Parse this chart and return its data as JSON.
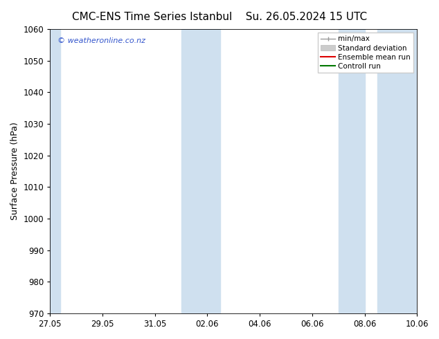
{
  "title_left": "CMC-ENS Time Series Istanbul",
  "title_right": "Su. 26.05.2024 15 UTC",
  "ylabel": "Surface Pressure (hPa)",
  "ylim": [
    970,
    1060
  ],
  "yticks": [
    970,
    980,
    990,
    1000,
    1010,
    1020,
    1030,
    1040,
    1050,
    1060
  ],
  "xtick_labels": [
    "27.05",
    "29.05",
    "31.05",
    "02.06",
    "04.06",
    "06.06",
    "08.06",
    "10.06"
  ],
  "xtick_positions": [
    0,
    2,
    4,
    6,
    8,
    10,
    12,
    14
  ],
  "x_total_days": 14,
  "shaded_regions": [
    {
      "x_start": -0.1,
      "x_end": 0.4
    },
    {
      "x_start": 5.0,
      "x_end": 6.5
    },
    {
      "x_start": 11.0,
      "x_end": 12.0
    },
    {
      "x_start": 12.5,
      "x_end": 14.1
    }
  ],
  "shade_color": "#cfe0ef",
  "legend_items": [
    {
      "label": "min/max",
      "color": "#aaaaaa"
    },
    {
      "label": "Standard deviation",
      "color": "#cccccc"
    },
    {
      "label": "Ensemble mean run",
      "color": "#dd0000"
    },
    {
      "label": "Controll run",
      "color": "#007700"
    }
  ],
  "watermark": "© weatheronline.co.nz",
  "watermark_color": "#3355cc",
  "bg_color": "#ffffff",
  "title_fontsize": 11,
  "ylabel_fontsize": 9,
  "tick_fontsize": 8.5,
  "legend_fontsize": 7.5,
  "watermark_fontsize": 8
}
